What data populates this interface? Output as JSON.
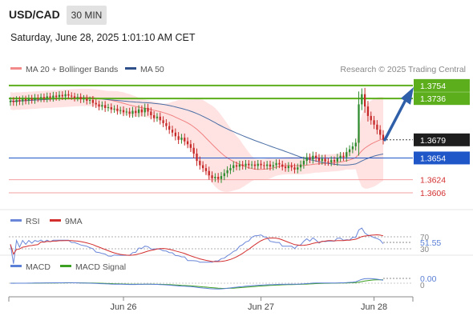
{
  "header": {
    "symbol": "USD/CAD",
    "timeframe": "30 MIN",
    "datetime": "Saturday, June 28, 2025 1:01:10 AM CET"
  },
  "legend": {
    "ma20_bb": "MA 20 + Bollinger Bands",
    "ma50": "MA 50",
    "research": "Research © 2025 Trading Central"
  },
  "rsi_panel": {
    "label": "RSI",
    "ma_label": "9MA",
    "value": "51.55",
    "upper": "70",
    "lower": "30"
  },
  "macd_panel": {
    "label": "MACD",
    "signal_label": "MACD Signal",
    "value": "0.00",
    "zero": "0"
  },
  "colors": {
    "up_candle": "#2e8b2e",
    "down_candle": "#c62828",
    "resistance": "#5cae1c",
    "support": "#1f56c8",
    "target_arrow": "#2e5fa8",
    "bollinger": "#ffd2d2",
    "ma20": "#f08080",
    "ma50": "#4a6fa5",
    "rsi": "#6a86d8",
    "rsi_ma": "#d32f2f",
    "macd": "#5a7fd6",
    "macd_signal": "#3ca022"
  },
  "chart_data": {
    "type": "candlestick",
    "symbol": "USD/CAD",
    "x_ticks": [
      "Jun 26",
      "Jun 27",
      "Jun 28"
    ],
    "ylim": [
      1.3596,
      1.3766
    ],
    "last_price": 1.3679,
    "levels": [
      {
        "value": 1.3754,
        "label": "1.3754",
        "kind": "resistance"
      },
      {
        "value": 1.3736,
        "label": "1.3736",
        "kind": "resistance"
      },
      {
        "value": 1.3654,
        "label": "1.3654",
        "kind": "support"
      },
      {
        "value": 1.3624,
        "label": "1.3624",
        "kind": "minor"
      },
      {
        "value": 1.3606,
        "label": "1.3606",
        "kind": "minor"
      }
    ],
    "target": 1.3754,
    "close": [
      1.3733,
      1.3731,
      1.3734,
      1.3732,
      1.3735,
      1.3733,
      1.3736,
      1.3734,
      1.3737,
      1.3736,
      1.3738,
      1.3736,
      1.3739,
      1.3737,
      1.374,
      1.3738,
      1.3741,
      1.3739,
      1.3742,
      1.374,
      1.3739,
      1.3737,
      1.3738,
      1.3735,
      1.3736,
      1.3733,
      1.3734,
      1.373,
      1.3728,
      1.3725,
      1.3727,
      1.3723,
      1.3724,
      1.3721,
      1.3722,
      1.3719,
      1.372,
      1.3717,
      1.3718,
      1.3715,
      1.3719,
      1.3716,
      1.3721,
      1.3717,
      1.3723,
      1.3718,
      1.3713,
      1.3709,
      1.3711,
      1.3706,
      1.3702,
      1.3698,
      1.3693,
      1.3689,
      1.3684,
      1.3679,
      1.3682,
      1.3677,
      1.3673,
      1.3668,
      1.366,
      1.365,
      1.3644,
      1.364,
      1.3636,
      1.363,
      1.3626,
      1.3628,
      1.3625,
      1.3629,
      1.3633,
      1.3637,
      1.364,
      1.3644,
      1.3642,
      1.3645,
      1.3643,
      1.3646,
      1.3644,
      1.3645,
      1.3643,
      1.3646,
      1.3644,
      1.3643,
      1.3645,
      1.3642,
      1.3644,
      1.3647,
      1.3645,
      1.3642,
      1.364,
      1.3643,
      1.3641,
      1.3638,
      1.3641,
      1.3645,
      1.365,
      1.3655,
      1.3652,
      1.3657,
      1.3654,
      1.365,
      1.3653,
      1.3649,
      1.3648,
      1.3651,
      1.3649,
      1.3654,
      1.3657,
      1.3655,
      1.3662,
      1.3666,
      1.367,
      1.3675,
      1.3728,
      1.3742,
      1.3725,
      1.3712,
      1.3706,
      1.37,
      1.3693,
      1.3686,
      1.3679
    ],
    "rsi": {
      "current": 51.55,
      "range": [
        30,
        70
      ]
    },
    "macd": {
      "current": 0.0
    }
  }
}
